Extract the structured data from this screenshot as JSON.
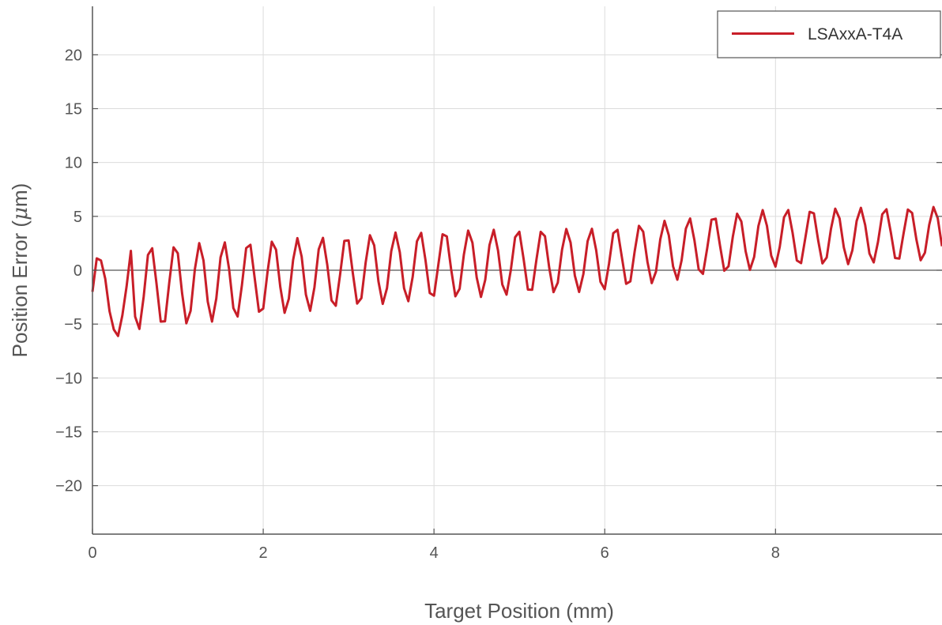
{
  "chart_data": {
    "type": "line",
    "title": "",
    "xlabel": "Target Position (mm)",
    "ylabel_prefix": "Position Error (",
    "ylabel_mu": "μ",
    "ylabel_suffix": "m)",
    "xlim": [
      0,
      9.95
    ],
    "ylim": [
      -24.5,
      24.5
    ],
    "xticks": [
      0,
      2,
      4,
      6,
      8
    ],
    "yticks": [
      20,
      15,
      10,
      5,
      0,
      -5,
      -10,
      -15,
      -20
    ],
    "xtick_labels": [
      "0",
      "2",
      "4",
      "6",
      "8"
    ],
    "ytick_labels": [
      "20",
      "15",
      "10",
      "5",
      "0",
      "−5",
      "−10",
      "−15",
      "−20"
    ],
    "grid": true,
    "legend": {
      "position": "top-right",
      "entries": [
        "LSAxxA-T4A"
      ]
    },
    "series": [
      {
        "name": "LSAxxA-T4A",
        "color": "#c81e28",
        "line_model": {
          "period_mm": 0.2867,
          "phase_mm": 0.0367,
          "offset_points": [
            [
              0,
              -2.0
            ],
            [
              2,
              -0.7
            ],
            [
              4,
              0.5
            ],
            [
              6,
              1.0
            ],
            [
              7.2,
              2.3
            ],
            [
              8,
              3.0
            ],
            [
              9.95,
              3.4
            ]
          ],
          "amplitude_points": [
            [
              0,
              4.1
            ],
            [
              2,
              3.5
            ],
            [
              4,
              3.2
            ],
            [
              6,
              2.9
            ],
            [
              8,
              2.7
            ],
            [
              9.95,
              2.5
            ]
          ],
          "x_step_mm": 0.05
        },
        "x_sample": [
          0,
          0.05,
          0.1,
          0.15,
          0.2,
          0.25,
          0.3,
          0.35,
          0.4,
          0.45
        ],
        "y_sample": [
          -2.0,
          1.1,
          0.9,
          -0.8,
          -3.8,
          -5.5,
          -6.1,
          -4.2,
          -1.5,
          1.8
        ]
      }
    ]
  }
}
